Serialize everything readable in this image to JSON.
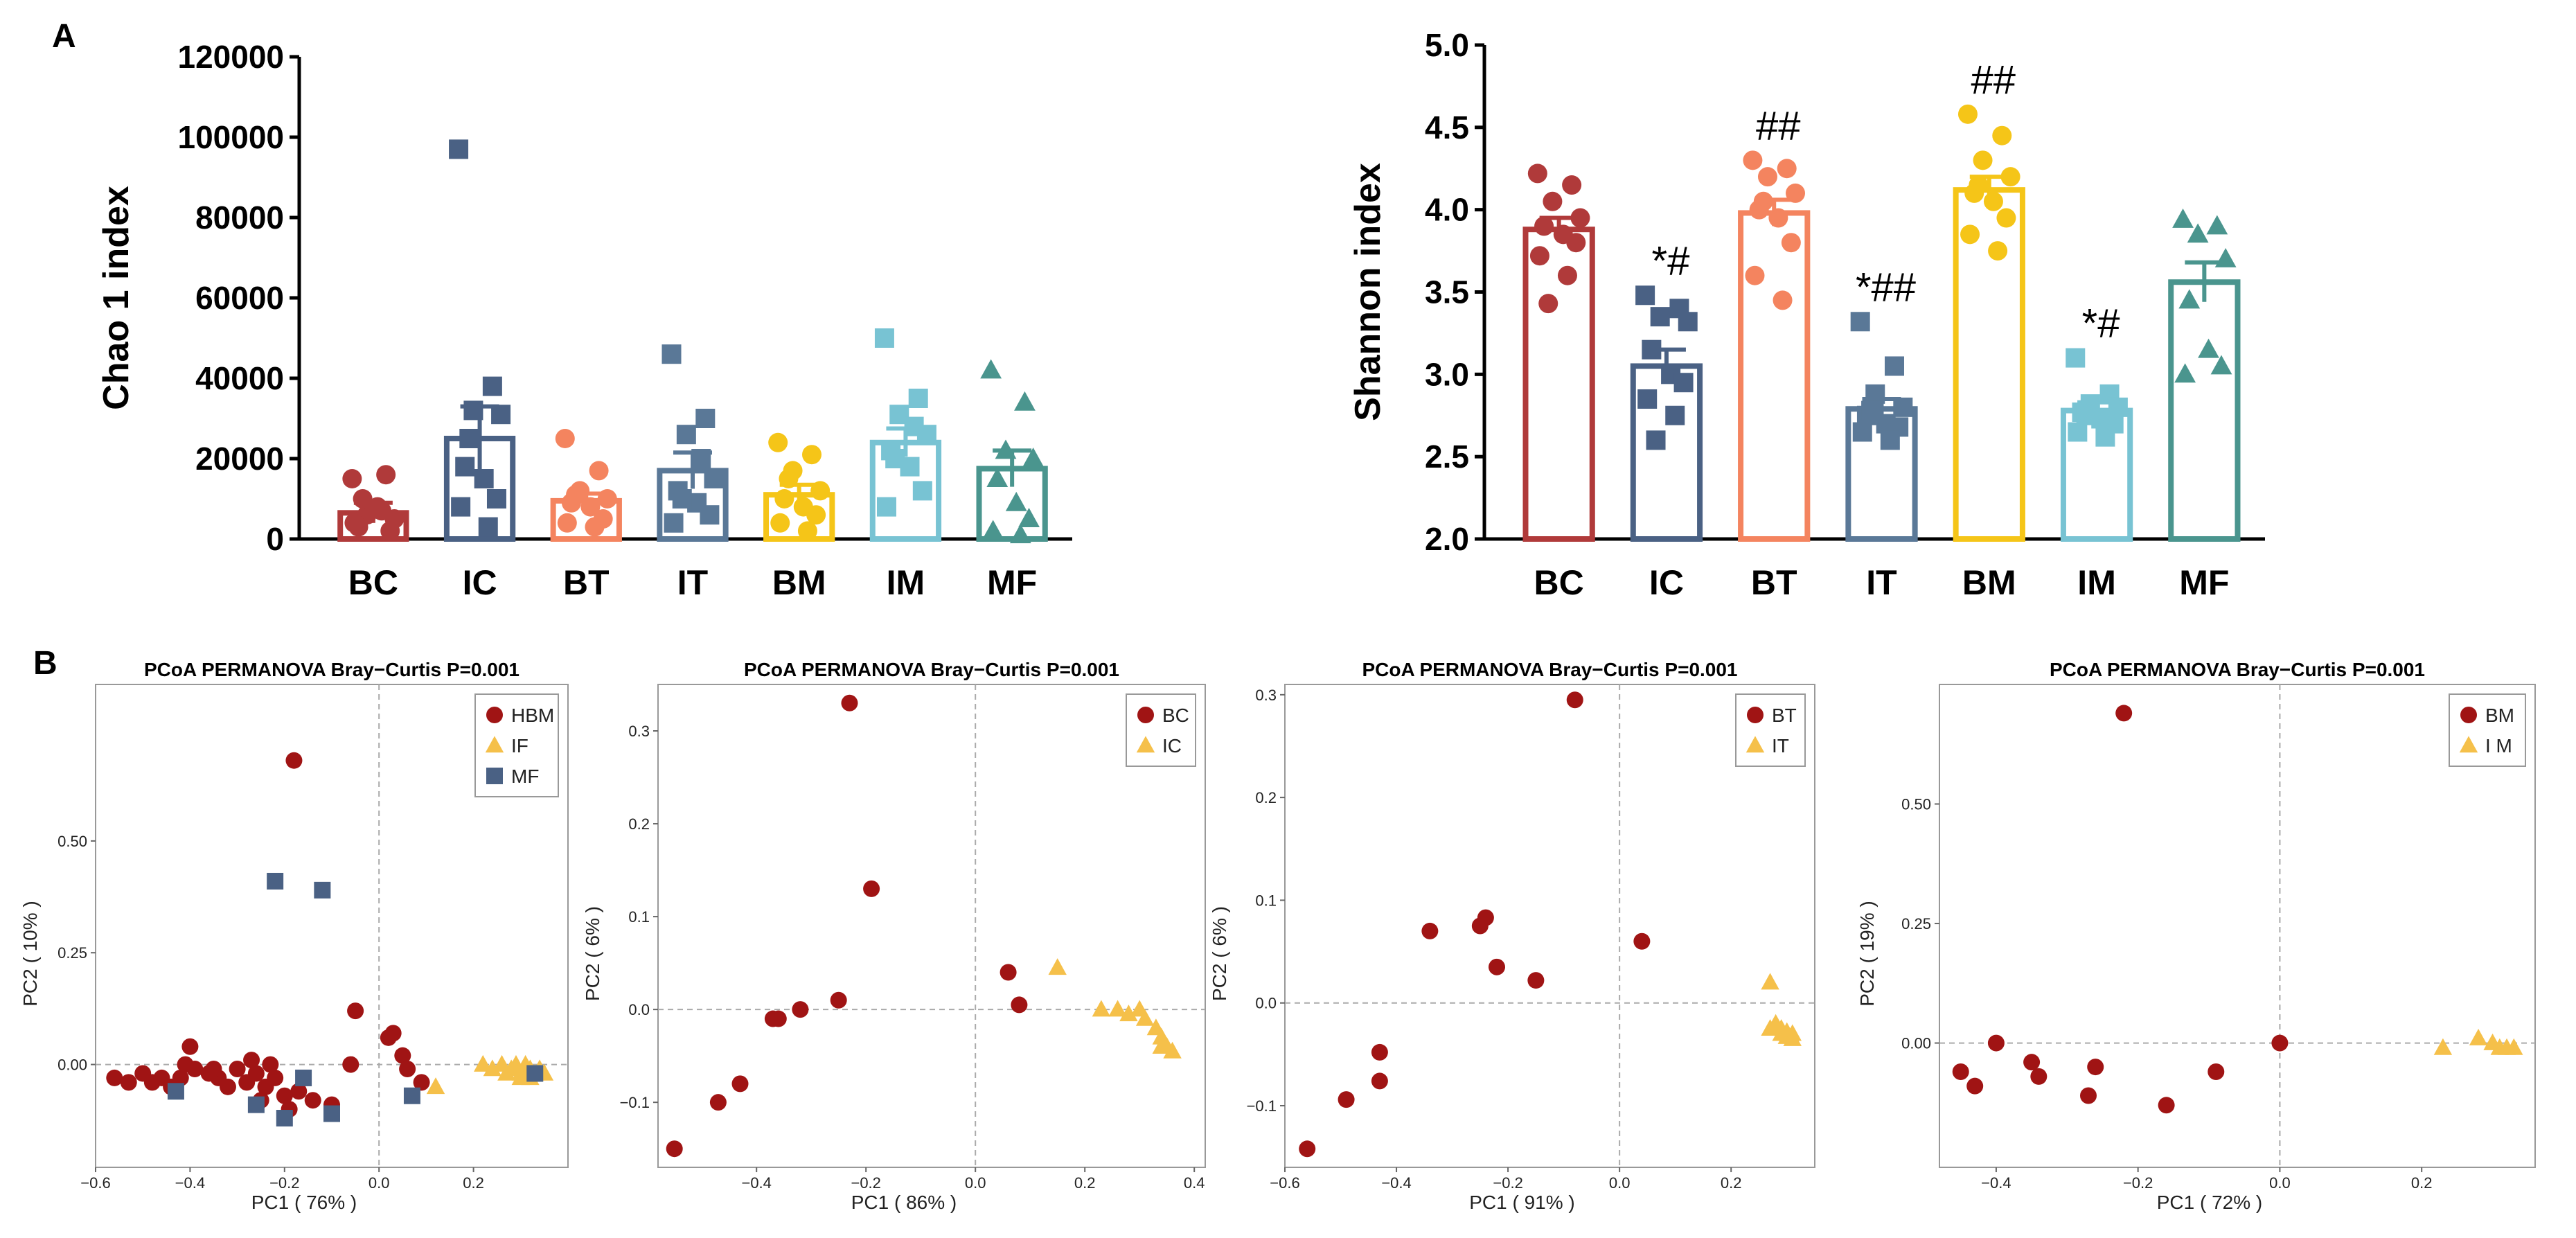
{
  "panel_labels": {
    "a": "A",
    "b": "B"
  },
  "chart_data": [
    {
      "id": "chao1",
      "type": "bar",
      "ylabel": "Chao 1 index",
      "ylim": [
        0,
        120000
      ],
      "ytick_values": [
        0,
        20000,
        40000,
        60000,
        80000,
        100000,
        120000
      ],
      "ytick_labels": [
        "0",
        "20000",
        "40000",
        "60000",
        "80000",
        "100000",
        "120000"
      ],
      "categories": [
        "BC",
        "IC",
        "BT",
        "IT",
        "BM",
        "IM",
        "MF"
      ],
      "colors": [
        "#b03a3a",
        "#4a6184",
        "#f4845f",
        "#5a7897",
        "#f5c518",
        "#78c3d3",
        "#4a958e"
      ],
      "markers": [
        "circle",
        "square",
        "circle",
        "square",
        "circle",
        "square",
        "triangle"
      ],
      "means": [
        6500,
        25000,
        9500,
        17000,
        11000,
        24000,
        17500
      ],
      "sem": [
        2500,
        8000,
        1800,
        4500,
        2500,
        3500,
        4500
      ],
      "points": [
        [
          15000,
          16000,
          6000,
          5000,
          3000,
          8000,
          2000,
          4000,
          7000,
          10000
        ],
        [
          97000,
          38000,
          32000,
          31000,
          18000,
          15000,
          10000,
          8000,
          3000,
          25000
        ],
        [
          25000,
          17000,
          12000,
          10000,
          9000,
          8000,
          5000,
          4000,
          3000,
          11000
        ],
        [
          46000,
          30000,
          26000,
          15000,
          12000,
          9000,
          6000,
          4000,
          20000,
          10000
        ],
        [
          24000,
          21000,
          17000,
          12000,
          10000,
          8000,
          6000,
          4000,
          2000,
          15000
        ],
        [
          50000,
          35000,
          31000,
          26000,
          22000,
          18000,
          12000,
          8000,
          28000,
          20000
        ],
        [
          42000,
          34000,
          22000,
          20000,
          15000,
          9000,
          5000,
          2000,
          1000
        ]
      ],
      "sig_labels": [
        "",
        "",
        "",
        "",
        "",
        "",
        ""
      ]
    },
    {
      "id": "shannon",
      "type": "bar",
      "ylabel": "Shannon index",
      "ylim": [
        2.0,
        5.0
      ],
      "ytick_values": [
        2.0,
        2.5,
        3.0,
        3.5,
        4.0,
        4.5,
        5.0
      ],
      "ytick_labels": [
        "2.0",
        "2.5",
        "3.0",
        "3.5",
        "4.0",
        "4.5",
        "5.0"
      ],
      "categories": [
        "BC",
        "IC",
        "BT",
        "IT",
        "BM",
        "IM",
        "MF"
      ],
      "colors": [
        "#b03a3a",
        "#4a6184",
        "#f4845f",
        "#5a7897",
        "#f5c518",
        "#78c3d3",
        "#4a958e"
      ],
      "markers": [
        "circle",
        "square",
        "circle",
        "square",
        "circle",
        "square",
        "triangle"
      ],
      "means": [
        3.88,
        3.05,
        3.98,
        2.79,
        4.12,
        2.78,
        3.56
      ],
      "sem": [
        0.07,
        0.1,
        0.08,
        0.06,
        0.08,
        0.05,
        0.12
      ],
      "points": [
        [
          4.22,
          4.15,
          4.05,
          3.95,
          3.9,
          3.85,
          3.8,
          3.72,
          3.6,
          3.43
        ],
        [
          3.48,
          3.4,
          3.35,
          3.32,
          3.15,
          3.0,
          2.95,
          2.85,
          2.75,
          2.6
        ],
        [
          4.3,
          4.25,
          4.2,
          4.1,
          4.0,
          3.95,
          3.8,
          3.6,
          3.45,
          4.05
        ],
        [
          3.32,
          3.05,
          2.88,
          2.8,
          2.75,
          2.7,
          2.68,
          2.65,
          2.6,
          2.78
        ],
        [
          4.58,
          4.45,
          4.3,
          4.2,
          4.1,
          4.05,
          3.95,
          3.85,
          3.75,
          4.15
        ],
        [
          3.1,
          2.88,
          2.82,
          2.8,
          2.77,
          2.73,
          2.7,
          2.65,
          2.62,
          2.75
        ],
        [
          3.94,
          3.9,
          3.85,
          3.7,
          3.45,
          3.15,
          3.05,
          3.0
        ]
      ],
      "sig_labels": [
        "",
        "*#",
        "##",
        "*##",
        "##",
        "*#",
        ""
      ]
    },
    {
      "id": "pcoa1",
      "type": "scatter",
      "title": "PCoA PERMANOVA Bray−Curtis P=0.001",
      "xlabel": "PC1 ( 76% )",
      "ylabel": "PC2 ( 10% )",
      "xlim": [
        -0.6,
        0.4
      ],
      "ylim": [
        -0.23,
        0.85
      ],
      "xticks": [
        -0.6,
        -0.4,
        -0.2,
        0.0,
        0.2
      ],
      "xtick_labels": [
        "−0.6",
        "−0.4",
        "−0.2",
        "0.0",
        "0.2"
      ],
      "yticks": [
        0.0,
        0.25,
        0.5
      ],
      "ytick_labels": [
        "0.00",
        "0.25",
        "0.50"
      ],
      "legend_position": "top-right",
      "series": [
        {
          "name": "HBM",
          "marker": "circle",
          "color": "#a01414",
          "points": [
            [
              -0.18,
              0.68
            ],
            [
              -0.05,
              0.12
            ],
            [
              0.03,
              0.07
            ],
            [
              0.02,
              0.06
            ],
            [
              0.05,
              0.02
            ],
            [
              0.06,
              -0.01
            ],
            [
              0.09,
              -0.04
            ],
            [
              -0.06,
              0.0
            ],
            [
              -0.4,
              0.04
            ],
            [
              -0.41,
              0.0
            ],
            [
              -0.39,
              -0.01
            ],
            [
              -0.56,
              -0.03
            ],
            [
              -0.53,
              -0.04
            ],
            [
              -0.5,
              -0.02
            ],
            [
              -0.48,
              -0.04
            ],
            [
              -0.46,
              -0.03
            ],
            [
              -0.44,
              -0.05
            ],
            [
              -0.42,
              -0.03
            ],
            [
              -0.36,
              -0.02
            ],
            [
              -0.34,
              -0.03
            ],
            [
              -0.3,
              -0.01
            ],
            [
              -0.28,
              -0.04
            ],
            [
              -0.26,
              -0.02
            ],
            [
              -0.24,
              -0.05
            ],
            [
              -0.22,
              -0.03
            ],
            [
              -0.2,
              -0.07
            ],
            [
              -0.25,
              -0.08
            ],
            [
              -0.17,
              -0.06
            ],
            [
              -0.14,
              -0.08
            ],
            [
              -0.1,
              -0.09
            ],
            [
              -0.19,
              -0.1
            ],
            [
              -0.32,
              -0.05
            ],
            [
              -0.27,
              0.01
            ],
            [
              -0.35,
              -0.01
            ],
            [
              -0.23,
              0.0
            ]
          ]
        },
        {
          "name": "IF",
          "marker": "triangle",
          "color": "#f5c04a",
          "points": [
            [
              0.12,
              -0.05
            ],
            [
              0.22,
              0.0
            ],
            [
              0.24,
              -0.01
            ],
            [
              0.26,
              0.0
            ],
            [
              0.28,
              -0.01
            ],
            [
              0.29,
              0.0
            ],
            [
              0.3,
              -0.02
            ],
            [
              0.31,
              0.0
            ],
            [
              0.32,
              -0.01
            ],
            [
              0.33,
              -0.02
            ],
            [
              0.34,
              -0.01
            ],
            [
              0.35,
              -0.02
            ],
            [
              0.3,
              -0.03
            ],
            [
              0.27,
              -0.02
            ],
            [
              0.32,
              -0.03
            ]
          ]
        },
        {
          "name": "MF",
          "marker": "square",
          "color": "#4a6184",
          "points": [
            [
              -0.22,
              0.41
            ],
            [
              -0.12,
              0.39
            ],
            [
              -0.43,
              -0.06
            ],
            [
              -0.26,
              -0.09
            ],
            [
              -0.16,
              -0.03
            ],
            [
              -0.2,
              -0.12
            ],
            [
              -0.1,
              -0.11
            ],
            [
              0.07,
              -0.07
            ],
            [
              0.33,
              -0.02
            ]
          ]
        }
      ]
    },
    {
      "id": "pcoa2",
      "type": "scatter",
      "title": "PCoA PERMANOVA Bray−Curtis P=0.001",
      "xlabel": "PC1 ( 86% )",
      "ylabel": "PC2 ( 6% )",
      "xlim": [
        -0.58,
        0.42
      ],
      "ylim": [
        -0.17,
        0.35
      ],
      "xticks": [
        -0.4,
        -0.2,
        0.0,
        0.2,
        0.4
      ],
      "xtick_labels": [
        "−0.4",
        "−0.2",
        "0.0",
        "0.2",
        "0.4"
      ],
      "yticks": [
        -0.1,
        0.0,
        0.1,
        0.2,
        0.3
      ],
      "ytick_labels": [
        "−0.1",
        "0.0",
        "0.1",
        "0.2",
        "0.3"
      ],
      "legend_position": "top-right",
      "series": [
        {
          "name": "BC",
          "marker": "circle",
          "color": "#a01414",
          "points": [
            [
              -0.23,
              0.33
            ],
            [
              -0.19,
              0.13
            ],
            [
              -0.55,
              -0.15
            ],
            [
              -0.47,
              -0.1
            ],
            [
              -0.43,
              -0.08
            ],
            [
              -0.36,
              -0.01
            ],
            [
              -0.37,
              -0.01
            ],
            [
              -0.32,
              0.0
            ],
            [
              -0.25,
              0.01
            ],
            [
              0.06,
              0.04
            ],
            [
              0.08,
              0.005
            ]
          ]
        },
        {
          "name": "IC",
          "marker": "triangle",
          "color": "#f5c04a",
          "points": [
            [
              0.15,
              0.045
            ],
            [
              0.23,
              0.0
            ],
            [
              0.26,
              0.0
            ],
            [
              0.28,
              -0.005
            ],
            [
              0.3,
              0.0
            ],
            [
              0.31,
              -0.01
            ],
            [
              0.33,
              -0.02
            ],
            [
              0.34,
              -0.03
            ],
            [
              0.35,
              -0.04
            ],
            [
              0.36,
              -0.045
            ],
            [
              0.34,
              -0.04
            ]
          ]
        }
      ]
    },
    {
      "id": "pcoa3",
      "type": "scatter",
      "title": "PCoA PERMANOVA Bray−Curtis P=0.001",
      "xlabel": "PC1 ( 91% )",
      "ylabel": "PC2 ( 6% )",
      "xlim": [
        -0.6,
        0.35
      ],
      "ylim": [
        -0.16,
        0.31
      ],
      "xticks": [
        -0.6,
        -0.4,
        -0.2,
        0.0,
        0.2
      ],
      "xtick_labels": [
        "−0.6",
        "−0.4",
        "−0.2",
        "0.0",
        "0.2"
      ],
      "yticks": [
        -0.1,
        0.0,
        0.1,
        0.2,
        0.3
      ],
      "ytick_labels": [
        "−0.1",
        "0.0",
        "0.1",
        "0.2",
        "0.3"
      ],
      "legend_position": "top-right",
      "series": [
        {
          "name": "BT",
          "marker": "circle",
          "color": "#a01414",
          "points": [
            [
              -0.08,
              0.295
            ],
            [
              -0.34,
              0.07
            ],
            [
              -0.25,
              0.075
            ],
            [
              -0.24,
              0.083
            ],
            [
              -0.22,
              0.035
            ],
            [
              -0.15,
              0.022
            ],
            [
              0.04,
              0.06
            ],
            [
              -0.43,
              -0.048
            ],
            [
              -0.43,
              -0.076
            ],
            [
              -0.49,
              -0.094
            ],
            [
              -0.56,
              -0.142
            ]
          ]
        },
        {
          "name": "IT",
          "marker": "triangle",
          "color": "#f5c04a",
          "points": [
            [
              0.27,
              0.02
            ],
            [
              0.27,
              -0.025
            ],
            [
              0.28,
              -0.02
            ],
            [
              0.29,
              -0.025
            ],
            [
              0.29,
              -0.03
            ],
            [
              0.3,
              -0.028
            ],
            [
              0.3,
              -0.033
            ],
            [
              0.31,
              -0.035
            ],
            [
              0.31,
              -0.03
            ]
          ]
        }
      ]
    },
    {
      "id": "pcoa4",
      "type": "scatter",
      "title": "PCoA PERMANOVA Bray−Curtis P=0.001",
      "xlabel": "PC1 ( 72% )",
      "ylabel": "PC2 ( 19% )",
      "xlim": [
        -0.48,
        0.36
      ],
      "ylim": [
        -0.26,
        0.75
      ],
      "xticks": [
        -0.4,
        -0.2,
        0.0,
        0.2
      ],
      "xtick_labels": [
        "−0.4",
        "−0.2",
        "0.0",
        "0.2"
      ],
      "yticks": [
        0.0,
        0.25,
        0.5
      ],
      "ytick_labels": [
        "0.00",
        "0.25",
        "0.50"
      ],
      "legend_position": "top-right",
      "series": [
        {
          "name": "BM",
          "marker": "circle",
          "color": "#a01414",
          "points": [
            [
              -0.22,
              0.69
            ],
            [
              -0.45,
              -0.06
            ],
            [
              -0.43,
              -0.09
            ],
            [
              -0.4,
              0.0
            ],
            [
              -0.35,
              -0.04
            ],
            [
              -0.34,
              -0.07
            ],
            [
              -0.27,
              -0.11
            ],
            [
              -0.26,
              -0.05
            ],
            [
              -0.16,
              -0.13
            ],
            [
              -0.09,
              -0.06
            ],
            [
              0.0,
              0.0
            ]
          ]
        },
        {
          "name": "I M",
          "marker": "triangle",
          "color": "#f5c04a",
          "points": [
            [
              0.23,
              -0.01
            ],
            [
              0.28,
              0.01
            ],
            [
              0.3,
              0.0
            ],
            [
              0.31,
              -0.01
            ],
            [
              0.32,
              -0.01
            ],
            [
              0.33,
              -0.01
            ]
          ]
        }
      ]
    }
  ]
}
